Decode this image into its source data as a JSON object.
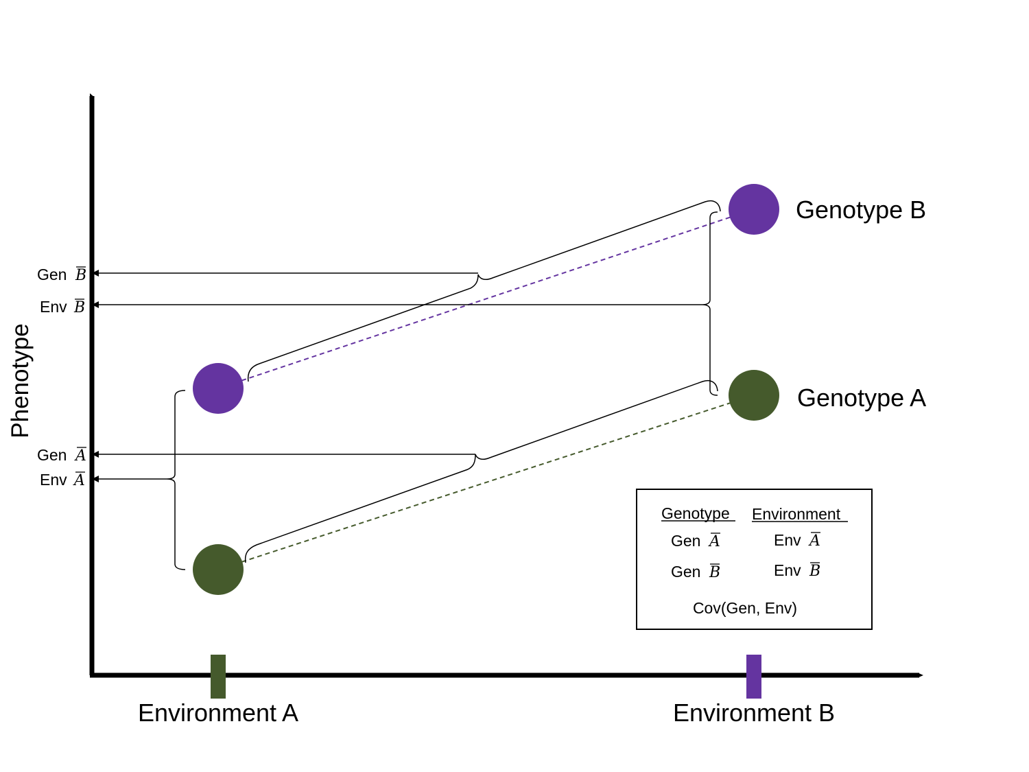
{
  "axes": {
    "y_label": "Phenotype",
    "x_ticks": [
      {
        "label": "Environment A",
        "color": "#455a2c"
      },
      {
        "label": "Environment B",
        "color": "#6434a0"
      }
    ]
  },
  "genotypes": {
    "b_label": "Genotype B",
    "a_label": "Genotype A",
    "b_color": "#6434a0",
    "a_color": "#455a2c"
  },
  "arrow_labels": {
    "gen_b": {
      "prefix": "Gen",
      "symbol": "B"
    },
    "env_b": {
      "prefix": "Env",
      "symbol": "B"
    },
    "gen_a": {
      "prefix": "Gen",
      "symbol": "A"
    },
    "env_a": {
      "prefix": "Env",
      "symbol": "A"
    }
  },
  "legend": {
    "col1_header": "Genotype",
    "col2_header": "Environment",
    "gen_a": {
      "prefix": "Gen",
      "symbol": "A"
    },
    "gen_b": {
      "prefix": "Gen",
      "symbol": "B"
    },
    "env_a": {
      "prefix": "Env",
      "symbol": "A"
    },
    "env_b": {
      "prefix": "Env",
      "symbol": "B"
    },
    "cov": "Cov(Gen, Env)"
  }
}
